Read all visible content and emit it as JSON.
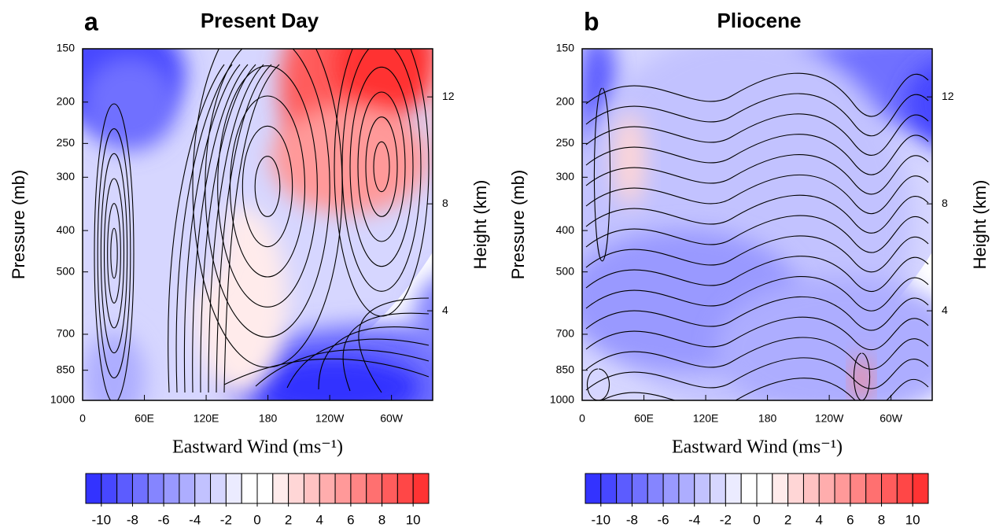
{
  "chart_data": [
    {
      "type": "contour",
      "panel": "a",
      "title": "Present Day",
      "xlabel": "Eastward Wind (ms⁻¹)",
      "ylabel": "Pressure (mb)",
      "y2label": "Height (km)",
      "xlim": [
        0,
        340
      ],
      "xticks": [
        0,
        {
          "value": 60,
          "label": "60E"
        },
        {
          "value": 120,
          "label": "120E"
        },
        180,
        {
          "value": 240,
          "label": "120W"
        },
        {
          "value": 300,
          "label": "60W"
        }
      ],
      "ylim": [
        1000,
        150
      ],
      "ylog": true,
      "yticks": [
        150,
        200,
        250,
        300,
        400,
        500,
        700,
        850,
        1000
      ],
      "y2lim": [
        0.65,
        13.8
      ],
      "y2ticks": [
        4,
        8,
        12
      ],
      "colorbar": {
        "lim": [
          -11,
          11
        ],
        "ticks": [
          -10,
          -8,
          -6,
          -4,
          -2,
          0,
          2,
          4,
          6,
          8,
          10
        ],
        "colors": [
          "#3333ff",
          "#4747ff",
          "#5c5cff",
          "#7070ff",
          "#8585ff",
          "#9999ff",
          "#adadff",
          "#c2c2ff",
          "#d6d6ff",
          "#ebebff",
          "#ffffff",
          "#ffffff",
          "#ffebeb",
          "#ffd6d6",
          "#ffc2c2",
          "#ffadad",
          "#ff9999",
          "#ff8585",
          "#ff7070",
          "#ff5c5c",
          "#ff4747",
          "#ff3333"
        ]
      }
    },
    {
      "type": "contour",
      "panel": "b",
      "title": "Pliocene",
      "xlabel": "Eastward Wind (ms⁻¹)",
      "ylabel": "Pressure (mb)",
      "y2label": "Height (km)",
      "xlim": [
        0,
        340
      ],
      "xticks": [
        0,
        {
          "value": 60,
          "label": "60E"
        },
        {
          "value": 120,
          "label": "120E"
        },
        180,
        {
          "value": 240,
          "label": "120W"
        },
        {
          "value": 300,
          "label": "60W"
        }
      ],
      "ylim": [
        1000,
        150
      ],
      "ylog": true,
      "yticks": [
        150,
        200,
        250,
        300,
        400,
        500,
        700,
        850,
        1000
      ],
      "y2lim": [
        0.65,
        13.8
      ],
      "y2ticks": [
        4,
        8,
        12
      ],
      "colorbar": {
        "lim": [
          -11,
          11
        ],
        "ticks": [
          -10,
          -8,
          -6,
          -4,
          -2,
          0,
          2,
          4,
          6,
          8,
          10
        ],
        "colors": [
          "#3333ff",
          "#4747ff",
          "#5c5cff",
          "#7070ff",
          "#8585ff",
          "#9999ff",
          "#adadff",
          "#c2c2ff",
          "#d6d6ff",
          "#ebebff",
          "#ffffff",
          "#ffffff",
          "#ffebeb",
          "#ffd6d6",
          "#ffc2c2",
          "#ffadad",
          "#ff9999",
          "#ff8585",
          "#ff7070",
          "#ff5c5c",
          "#ff4747",
          "#ff3333"
        ]
      }
    }
  ]
}
